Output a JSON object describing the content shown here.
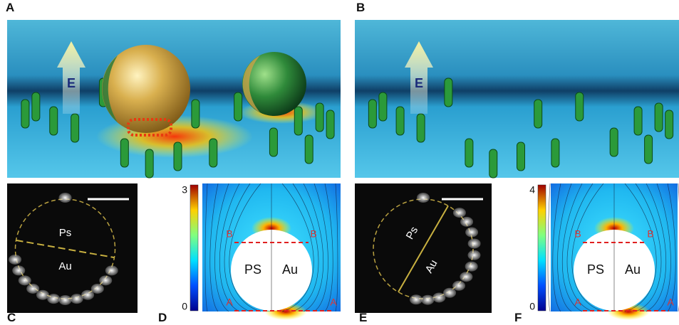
{
  "panel_labels": [
    "A",
    "B",
    "C",
    "D",
    "E",
    "F"
  ],
  "scene_a": {
    "field_label": "E"
  },
  "scene_b": {
    "field_label": "E"
  },
  "micrograph_c": {
    "top_label": "Ps",
    "bottom_label": "Au"
  },
  "field_map_d": {
    "colorbar_max": 3,
    "colorbar_min": 0,
    "left_label": "PS",
    "right_label": "Au",
    "top_line_labels": [
      "B",
      "B"
    ],
    "bottom_line_labels": [
      "A",
      "A"
    ]
  },
  "micrograph_e": {
    "top_label": "Ps",
    "bottom_label": "Au"
  },
  "field_map_f": {
    "colorbar_max": 4,
    "colorbar_min": 0,
    "left_label": "PS",
    "right_label": "Au",
    "top_line_labels": [
      "B",
      "B"
    ],
    "bottom_line_labels": [
      "A",
      "A"
    ]
  }
}
